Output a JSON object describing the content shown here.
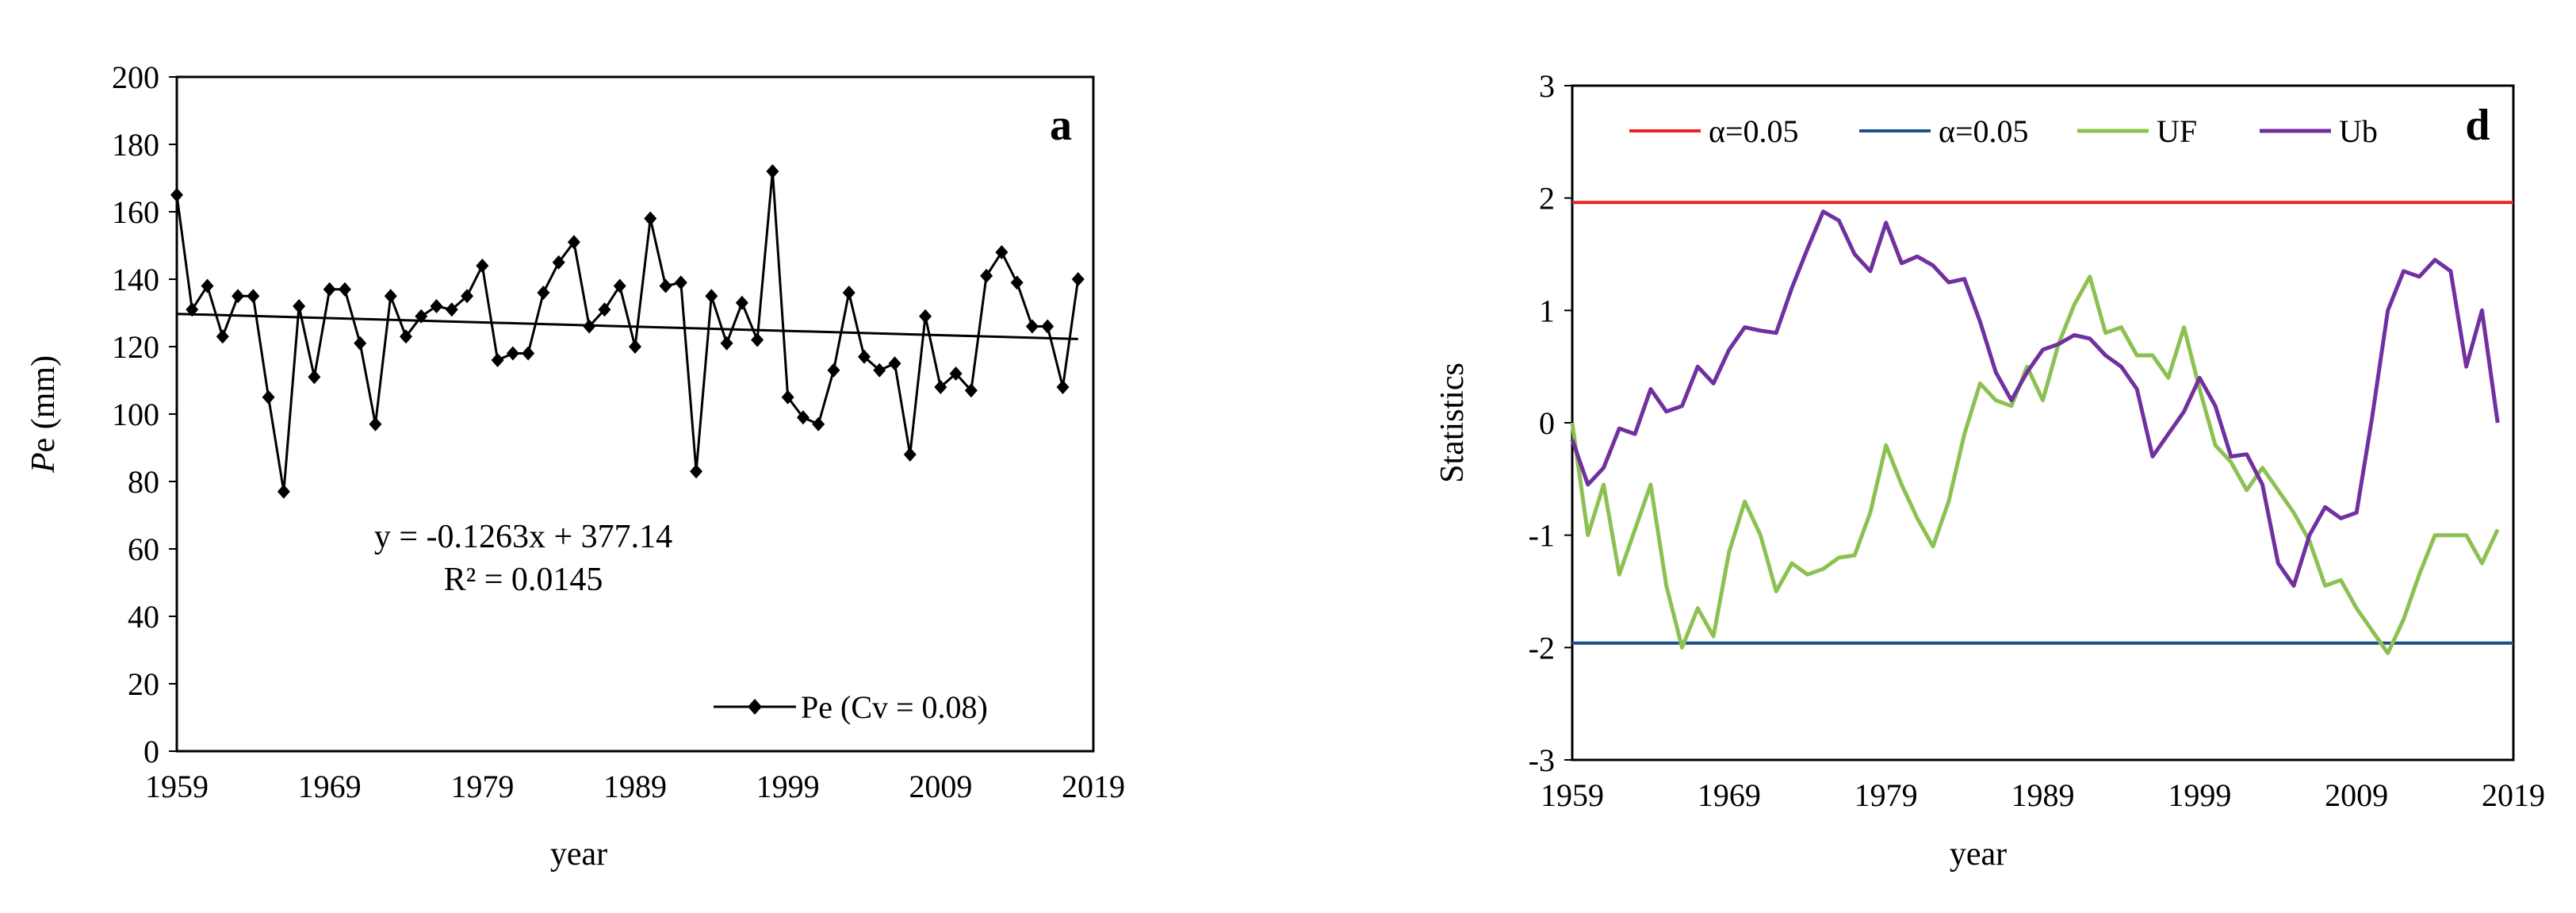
{
  "colors": {
    "series_pe": "#000000",
    "trend": "#000000",
    "alpha_upper": "#E8231F",
    "alpha_lower": "#1F4E8C",
    "uf": "#8CC152",
    "ub": "#7030A0"
  },
  "chart_data": [
    {
      "type": "line",
      "panel_label": "a",
      "xlabel": "year",
      "ylabel_main": "P",
      "ylabel_rest": "e  (mm)",
      "xlim": [
        1959,
        2019
      ],
      "ylim": [
        0,
        200
      ],
      "xticks": [
        1959,
        1969,
        1979,
        1989,
        1999,
        2009,
        2019
      ],
      "yticks": [
        0,
        20,
        40,
        60,
        80,
        100,
        120,
        140,
        160,
        180,
        200
      ],
      "grid": false,
      "legend_position": "bottom-right",
      "series": [
        {
          "name": "Pe (Cv = 0.08)",
          "marker": "diamond",
          "x": [
            1959,
            1960,
            1961,
            1962,
            1963,
            1964,
            1965,
            1966,
            1967,
            1968,
            1969,
            1970,
            1971,
            1972,
            1973,
            1974,
            1975,
            1976,
            1977,
            1978,
            1979,
            1980,
            1981,
            1982,
            1983,
            1984,
            1985,
            1986,
            1987,
            1988,
            1989,
            1990,
            1991,
            1992,
            1993,
            1994,
            1995,
            1996,
            1997,
            1998,
            1999,
            2000,
            2001,
            2002,
            2003,
            2004,
            2005,
            2006,
            2007,
            2008,
            2009,
            2010,
            2011,
            2012,
            2013,
            2014,
            2015,
            2016,
            2017,
            2018
          ],
          "y": [
            165,
            131,
            138,
            123,
            135,
            135,
            105,
            77,
            132,
            111,
            137,
            137,
            121,
            97,
            135,
            123,
            129,
            132,
            131,
            135,
            144,
            116,
            118,
            118,
            136,
            145,
            151,
            126,
            131,
            138,
            120,
            158,
            138,
            139,
            83,
            135,
            121,
            133,
            122,
            172,
            105,
            99,
            97,
            113,
            136,
            117,
            113,
            115,
            88,
            129,
            108,
            112,
            107,
            141,
            148,
            139,
            126,
            126,
            108,
            140
          ]
        }
      ],
      "trendline": {
        "equation": "y = -0.1263x + 377.14",
        "r2": "R² = 0.0145",
        "slope": -0.1263,
        "intercept": 377.14,
        "x_start": 1959,
        "x_end": 2018
      }
    },
    {
      "type": "line",
      "panel_label": "d",
      "xlabel": "year",
      "ylabel": "Statistics",
      "xlim": [
        1959,
        2019
      ],
      "ylim": [
        -3,
        3
      ],
      "xticks": [
        1959,
        1969,
        1979,
        1989,
        1999,
        2009,
        2019
      ],
      "yticks": [
        -3,
        -2,
        -1,
        0,
        1,
        2,
        3
      ],
      "grid": false,
      "legend_position": "top",
      "series": [
        {
          "name": "α=0.05",
          "color_key": "alpha_upper",
          "x": [
            1959,
            2019
          ],
          "y": [
            1.96,
            1.96
          ]
        },
        {
          "name": "α=0.05",
          "color_key": "alpha_lower",
          "x": [
            1959,
            2019
          ],
          "y": [
            -1.96,
            -1.96
          ]
        },
        {
          "name": "UF",
          "color_key": "uf",
          "x": [
            1959,
            1960,
            1961,
            1962,
            1963,
            1964,
            1965,
            1966,
            1967,
            1968,
            1969,
            1970,
            1971,
            1972,
            1973,
            1974,
            1975,
            1976,
            1977,
            1978,
            1979,
            1980,
            1981,
            1982,
            1983,
            1984,
            1985,
            1986,
            1987,
            1988,
            1989,
            1990,
            1991,
            1992,
            1993,
            1994,
            1995,
            1996,
            1997,
            1998,
            1999,
            2000,
            2001,
            2002,
            2003,
            2004,
            2005,
            2006,
            2007,
            2008,
            2009,
            2010,
            2011,
            2012,
            2013,
            2014,
            2015,
            2016,
            2017,
            2018
          ],
          "y": [
            0.0,
            -1.0,
            -0.55,
            -1.35,
            -0.95,
            -0.55,
            -1.45,
            -2.0,
            -1.65,
            -1.9,
            -1.15,
            -0.7,
            -1.0,
            -1.5,
            -1.25,
            -1.35,
            -1.3,
            -1.2,
            -1.18,
            -0.8,
            -0.2,
            -0.55,
            -0.85,
            -1.1,
            -0.7,
            -0.1,
            0.35,
            0.2,
            0.15,
            0.5,
            0.2,
            0.7,
            1.05,
            1.3,
            0.8,
            0.85,
            0.6,
            0.6,
            0.4,
            0.85,
            0.3,
            -0.2,
            -0.35,
            -0.6,
            -0.4,
            -0.6,
            -0.8,
            -1.05,
            -1.45,
            -1.4,
            -1.65,
            -1.85,
            -2.05,
            -1.75,
            -1.35,
            -1.0,
            -1.0,
            -1.0,
            -1.25,
            -0.95
          ]
        },
        {
          "name": "Ub",
          "color_key": "ub",
          "x": [
            1959,
            1960,
            1961,
            1962,
            1963,
            1964,
            1965,
            1966,
            1967,
            1968,
            1969,
            1970,
            1971,
            1972,
            1973,
            1974,
            1975,
            1976,
            1977,
            1978,
            1979,
            1980,
            1981,
            1982,
            1983,
            1984,
            1985,
            1986,
            1987,
            1988,
            1989,
            1990,
            1991,
            1992,
            1993,
            1994,
            1995,
            1996,
            1997,
            1998,
            1999,
            2000,
            2001,
            2002,
            2003,
            2004,
            2005,
            2006,
            2007,
            2008,
            2009,
            2010,
            2011,
            2012,
            2013,
            2014,
            2015,
            2016,
            2017,
            2018
          ],
          "y": [
            -0.15,
            -0.55,
            -0.4,
            -0.05,
            -0.1,
            0.3,
            0.1,
            0.15,
            0.5,
            0.35,
            0.65,
            0.85,
            0.82,
            0.8,
            1.2,
            1.55,
            1.88,
            1.8,
            1.5,
            1.35,
            1.78,
            1.42,
            1.48,
            1.4,
            1.25,
            1.28,
            0.9,
            0.45,
            0.2,
            0.45,
            0.65,
            0.7,
            0.78,
            0.75,
            0.6,
            0.5,
            0.3,
            -0.3,
            -0.1,
            0.1,
            0.4,
            0.15,
            -0.3,
            -0.28,
            -0.55,
            -1.25,
            -1.45,
            -1.0,
            -0.75,
            -0.85,
            -0.8,
            0.05,
            1.0,
            1.35,
            1.3,
            1.45,
            1.35,
            0.5,
            1.0,
            0.0
          ]
        }
      ]
    }
  ]
}
